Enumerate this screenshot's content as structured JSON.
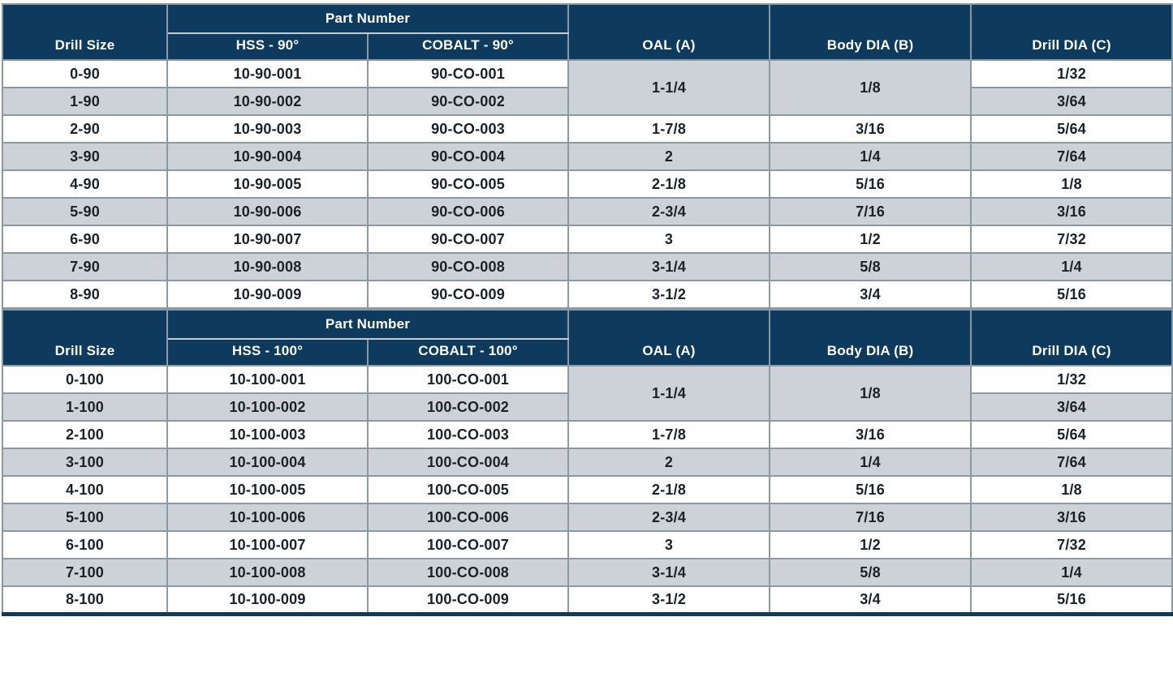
{
  "colors": {
    "header_bg": "#0e3a5e",
    "header_text": "#ffffff",
    "row_bg": "#ffffff",
    "row_alt_bg": "#ccd2d7",
    "border": "#8b99a2",
    "header_divider": "#c5cdd2",
    "cell_text": "#1a2129",
    "bottom_bar": "#0e3a5e"
  },
  "tables": [
    {
      "name": "90-degree-countersink-drills",
      "header": {
        "drill_size": "Drill Size",
        "part_number": "Part Number",
        "hss": "HSS - 90°",
        "cobalt": "COBALT - 90°",
        "oal": "OAL (A)",
        "body_dia": "Body DIA (B)",
        "drill_dia": "Drill DIA (C)"
      },
      "rows": [
        {
          "drill_size": "0-90",
          "hss": "10-90-001",
          "cobalt": "90-CO-001",
          "oal": "1-1/4",
          "oal_rowspan": 2,
          "body_dia": "1/8",
          "body_rowspan": 2,
          "drill_dia": "1/32"
        },
        {
          "drill_size": "1-90",
          "hss": "10-90-002",
          "cobalt": "90-CO-002",
          "drill_dia": "3/64"
        },
        {
          "drill_size": "2-90",
          "hss": "10-90-003",
          "cobalt": "90-CO-003",
          "oal": "1-7/8",
          "body_dia": "3/16",
          "drill_dia": "5/64"
        },
        {
          "drill_size": "3-90",
          "hss": "10-90-004",
          "cobalt": "90-CO-004",
          "oal": "2",
          "body_dia": "1/4",
          "drill_dia": "7/64"
        },
        {
          "drill_size": "4-90",
          "hss": "10-90-005",
          "cobalt": "90-CO-005",
          "oal": "2-1/8",
          "body_dia": "5/16",
          "drill_dia": "1/8"
        },
        {
          "drill_size": "5-90",
          "hss": "10-90-006",
          "cobalt": "90-CO-006",
          "oal": "2-3/4",
          "body_dia": "7/16",
          "drill_dia": "3/16"
        },
        {
          "drill_size": "6-90",
          "hss": "10-90-007",
          "cobalt": "90-CO-007",
          "oal": "3",
          "body_dia": "1/2",
          "drill_dia": "7/32"
        },
        {
          "drill_size": "7-90",
          "hss": "10-90-008",
          "cobalt": "90-CO-008",
          "oal": "3-1/4",
          "body_dia": "5/8",
          "drill_dia": "1/4"
        },
        {
          "drill_size": "8-90",
          "hss": "10-90-009",
          "cobalt": "90-CO-009",
          "oal": "3-1/2",
          "body_dia": "3/4",
          "drill_dia": "5/16"
        }
      ]
    },
    {
      "name": "100-degree-countersink-drills",
      "header": {
        "drill_size": "Drill Size",
        "part_number": "Part Number",
        "hss": "HSS - 100°",
        "cobalt": "COBALT - 100°",
        "oal": "OAL (A)",
        "body_dia": "Body DIA (B)",
        "drill_dia": "Drill DIA (C)"
      },
      "rows": [
        {
          "drill_size": "0-100",
          "hss": "10-100-001",
          "cobalt": "100-CO-001",
          "oal": "1-1/4",
          "oal_rowspan": 2,
          "body_dia": "1/8",
          "body_rowspan": 2,
          "drill_dia": "1/32"
        },
        {
          "drill_size": "1-100",
          "hss": "10-100-002",
          "cobalt": "100-CO-002",
          "drill_dia": "3/64"
        },
        {
          "drill_size": "2-100",
          "hss": "10-100-003",
          "cobalt": "100-CO-003",
          "oal": "1-7/8",
          "body_dia": "3/16",
          "drill_dia": "5/64"
        },
        {
          "drill_size": "3-100",
          "hss": "10-100-004",
          "cobalt": "100-CO-004",
          "oal": "2",
          "body_dia": "1/4",
          "drill_dia": "7/64"
        },
        {
          "drill_size": "4-100",
          "hss": "10-100-005",
          "cobalt": "100-CO-005",
          "oal": "2-1/8",
          "body_dia": "5/16",
          "drill_dia": "1/8"
        },
        {
          "drill_size": "5-100",
          "hss": "10-100-006",
          "cobalt": "100-CO-006",
          "oal": "2-3/4",
          "body_dia": "7/16",
          "drill_dia": "3/16"
        },
        {
          "drill_size": "6-100",
          "hss": "10-100-007",
          "cobalt": "100-CO-007",
          "oal": "3",
          "body_dia": "1/2",
          "drill_dia": "7/32"
        },
        {
          "drill_size": "7-100",
          "hss": "10-100-008",
          "cobalt": "100-CO-008",
          "oal": "3-1/4",
          "body_dia": "5/8",
          "drill_dia": "1/4"
        },
        {
          "drill_size": "8-100",
          "hss": "10-100-009",
          "cobalt": "100-CO-009",
          "oal": "3-1/2",
          "body_dia": "3/4",
          "drill_dia": "5/16"
        }
      ]
    }
  ]
}
